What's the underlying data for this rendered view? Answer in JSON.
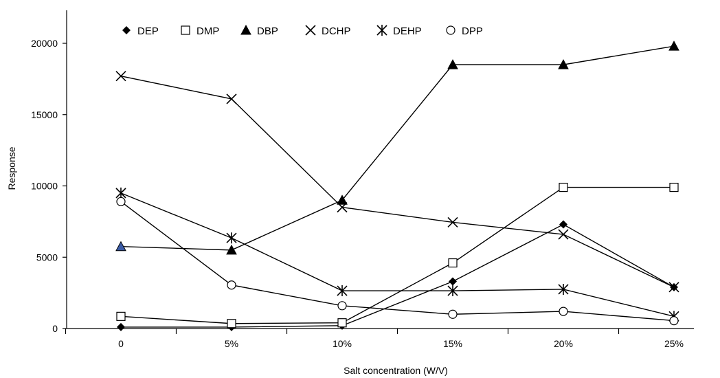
{
  "chart_data": {
    "type": "line",
    "xlabel": "Salt concentration (W/V)",
    "ylabel": "Response",
    "categories": [
      "0",
      "5%",
      "10%",
      "15%",
      "20%",
      "25%"
    ],
    "y_ticks": [
      "0",
      "5000",
      "10000",
      "15000",
      "20000"
    ],
    "ylim": [
      0,
      22000
    ],
    "grid": false,
    "legend_position": "top-left",
    "series": [
      {
        "name": "DEP",
        "marker": "diamond",
        "values": [
          100,
          100,
          200,
          3300,
          7300,
          2900
        ]
      },
      {
        "name": "DMP",
        "marker": "square-open",
        "values": [
          850,
          350,
          400,
          4600,
          9900,
          9900
        ]
      },
      {
        "name": "DBP",
        "marker": "triangle",
        "values": [
          5750,
          5500,
          9000,
          18500,
          18500,
          19800
        ]
      },
      {
        "name": "DCHP",
        "marker": "x",
        "values": [
          17700,
          16100,
          8500,
          7450,
          6600,
          2900
        ]
      },
      {
        "name": "DEHP",
        "marker": "asterisk",
        "values": [
          9500,
          6350,
          2650,
          2650,
          2750,
          850
        ]
      },
      {
        "name": "DPP",
        "marker": "circle-open",
        "values": [
          8900,
          3050,
          1600,
          1000,
          1200,
          550
        ]
      }
    ],
    "colors": {
      "line": "#000000",
      "highlight_first_point_fill": "#3b5ba5"
    }
  }
}
